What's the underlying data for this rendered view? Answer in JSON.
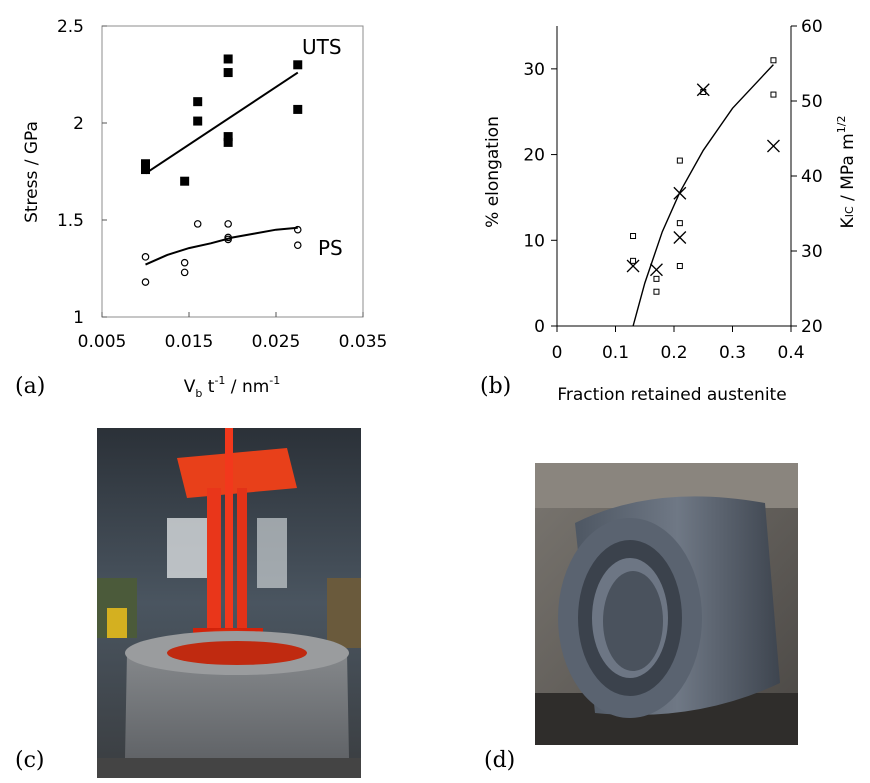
{
  "panels": {
    "a": "(a)",
    "b": "(b)",
    "c": "(c)",
    "d": "(d)"
  },
  "chart_data": [
    {
      "type": "scatter",
      "ylabel": "Stress / GPa",
      "xlabel_parts": {
        "base": "V",
        "sub": "b",
        "mid": " t",
        "sup1": "-1",
        "after": " / nm",
        "sup2": "-1"
      },
      "xlim": [
        0.005,
        0.035
      ],
      "ylim": [
        1,
        2.5
      ],
      "xticks": [
        "0.005",
        "0.015",
        "0.025",
        "0.035"
      ],
      "yticks": [
        "1",
        "1.5",
        "2",
        "2.5"
      ],
      "series": [
        {
          "name": "UTS",
          "marker": "filled-square",
          "points": [
            [
              0.01,
              1.76
            ],
            [
              0.01,
              1.79
            ],
            [
              0.0145,
              1.7
            ],
            [
              0.016,
              2.01
            ],
            [
              0.016,
              2.11
            ],
            [
              0.0195,
              1.9
            ],
            [
              0.0195,
              1.93
            ],
            [
              0.0195,
              2.26
            ],
            [
              0.0195,
              2.33
            ],
            [
              0.0275,
              2.07
            ],
            [
              0.0275,
              2.3
            ]
          ],
          "trend": [
            [
              0.01,
              1.74
            ],
            [
              0.0275,
              2.26
            ]
          ]
        },
        {
          "name": "PS",
          "marker": "open-circle",
          "points": [
            [
              0.01,
              1.18
            ],
            [
              0.01,
              1.31
            ],
            [
              0.0145,
              1.23
            ],
            [
              0.0145,
              1.28
            ],
            [
              0.016,
              1.48
            ],
            [
              0.0195,
              1.4
            ],
            [
              0.0195,
              1.41
            ],
            [
              0.0195,
              1.48
            ],
            [
              0.0275,
              1.37
            ],
            [
              0.0275,
              1.45
            ]
          ],
          "trend": [
            [
              0.01,
              1.27
            ],
            [
              0.0125,
              1.32
            ],
            [
              0.015,
              1.355
            ],
            [
              0.0175,
              1.38
            ],
            [
              0.02,
              1.41
            ],
            [
              0.0225,
              1.43
            ],
            [
              0.025,
              1.45
            ],
            [
              0.0275,
              1.46
            ]
          ]
        }
      ]
    },
    {
      "type": "scatter",
      "xlabel": "Fraction retained austenite",
      "ylabel_left": "% elongation",
      "ylabel_right_parts": {
        "base": "K",
        "sub": "IC",
        "after": " / MPa m",
        "sup": "1/2"
      },
      "xlim": [
        0,
        0.4
      ],
      "ylim_left": [
        0,
        35
      ],
      "ylim_right": [
        20,
        60
      ],
      "xticks": [
        "0",
        "0.1",
        "0.2",
        "0.3",
        "0.4"
      ],
      "yticks_left": [
        "0",
        "10",
        "20",
        "30"
      ],
      "yticks_right": [
        "20",
        "30",
        "40",
        "50",
        "60"
      ],
      "series": [
        {
          "name": "% elongation",
          "marker": "open-square",
          "axis": "left",
          "points": [
            [
              0.13,
              10.5
            ],
            [
              0.13,
              7.6
            ],
            [
              0.17,
              5.5
            ],
            [
              0.17,
              4.0
            ],
            [
              0.21,
              19.3
            ],
            [
              0.21,
              12.0
            ],
            [
              0.21,
              7.0
            ],
            [
              0.25,
              27.3
            ],
            [
              0.37,
              31.0
            ],
            [
              0.37,
              27.0
            ]
          ],
          "trend": [
            [
              0.13,
              0.0
            ],
            [
              0.15,
              5.0
            ],
            [
              0.18,
              11.0
            ],
            [
              0.21,
              15.6
            ],
            [
              0.25,
              20.5
            ],
            [
              0.3,
              25.4
            ],
            [
              0.37,
              30.5
            ]
          ]
        },
        {
          "name": "K_IC",
          "marker": "x",
          "axis": "right",
          "points": [
            [
              0.13,
              28.0
            ],
            [
              0.17,
              27.5
            ],
            [
              0.21,
              37.7
            ],
            [
              0.21,
              31.8
            ],
            [
              0.25,
              51.5
            ],
            [
              0.37,
              44.0
            ]
          ]
        }
      ]
    }
  ],
  "images": {
    "c": "photo of red-hot steel component being lowered into a round quench tank in a workshop",
    "d": "photo of a coil of rolled steel sheet"
  }
}
